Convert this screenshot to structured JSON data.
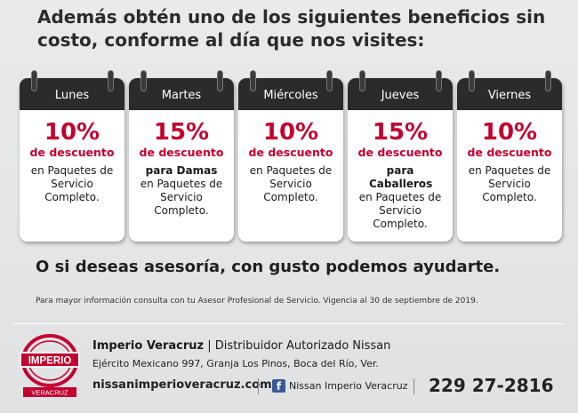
{
  "headline": "Además obtén uno de los siguientes beneficios sin costo, conforme al día que nos visites:",
  "cards": [
    {
      "day": "Lunes",
      "percent": "10%",
      "discount": "de descuento",
      "bold": "",
      "text": "en Paquetes de Servicio Completo."
    },
    {
      "day": "Martes",
      "percent": "15%",
      "discount": "de descuento",
      "bold": "para Damas",
      "text": "en Paquetes de Servicio Completo."
    },
    {
      "day": "Miércoles",
      "percent": "10%",
      "discount": "de descuento",
      "bold": "",
      "text": "en Paquetes de Servicio Completo."
    },
    {
      "day": "Jueves",
      "percent": "15%",
      "discount": "de descuento",
      "bold": "para Caballeros",
      "text": "en Paquetes de Servicio Completo."
    },
    {
      "day": "Viernes",
      "percent": "10%",
      "discount": "de descuento",
      "bold": "",
      "text": "en Paquetes de Servicio Completo."
    }
  ],
  "subheadline": "O si deseas asesoría, con gusto podemos ayudarte.",
  "fine_print": "Para mayor información consulta con tu Asesor Profesional de Servicio. Vigencia al 30 de septiembre de 2019.",
  "footer": {
    "logo_text": "IMPERIO",
    "logo_sub": "VERACRUZ",
    "dealer": "Imperio Veracruz",
    "dealer_sep": "|",
    "dealer_desc": "Distribuidor Autorizado Nissan",
    "address": "Ejército Mexicano 997, Granja Los Pinos, Boca del Río, Ver.",
    "website": "nissanimperioveracruz.com",
    "facebook_icon": "facebook-icon",
    "facebook": "Nissan Imperio Veracruz",
    "phone": "229 27-2816"
  },
  "colors": {
    "accent": "#c3002f",
    "band": "#2b2b2b",
    "facebook": "#3b5998"
  }
}
